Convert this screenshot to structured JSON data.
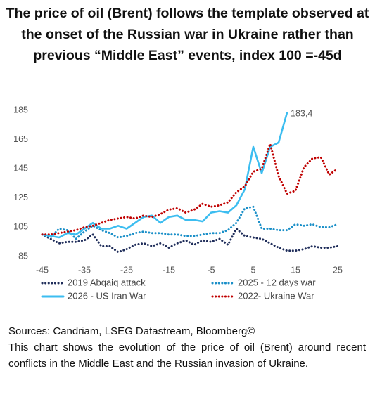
{
  "chart_data": {
    "type": "line",
    "title": "The price of oil (Brent) follows the template observed at the onset of the Russian war in Ukraine rather than previous “Middle East” events, index 100 =-45d",
    "x": [
      -45,
      -43,
      -41,
      -39,
      -37,
      -35,
      -33,
      -31,
      -29,
      -27,
      -25,
      -23,
      -21,
      -19,
      -17,
      -15,
      -13,
      -11,
      -9,
      -7,
      -5,
      -3,
      -1,
      1,
      3,
      5,
      7,
      9,
      11,
      13,
      15,
      17,
      19,
      21,
      23,
      25
    ],
    "series": [
      {
        "name": "2019 Abqaiq attack",
        "color": "#1f2d5a",
        "dashed": true,
        "values": [
          100,
          97,
          94,
          95,
          95,
          96,
          100,
          92,
          92,
          88,
          90,
          93,
          94,
          92,
          94,
          91,
          94,
          96,
          93,
          96,
          95,
          97,
          93,
          104,
          99,
          98,
          97,
          94,
          91,
          89,
          89,
          90,
          92,
          91,
          91,
          92
        ]
      },
      {
        "name": "2025 - 12 days war",
        "color": "#1a8fc8",
        "dashed": true,
        "values": [
          100,
          98,
          104,
          103,
          97,
          102,
          106,
          103,
          101,
          98,
          99,
          101,
          102,
          101,
          101,
          100,
          100,
          99,
          99,
          100,
          101,
          101,
          103,
          108,
          118,
          119,
          104,
          104,
          103,
          103,
          107,
          106,
          107,
          105,
          105,
          107
        ]
      },
      {
        "name": "2026 - US Iran War",
        "color": "#3cbdf0",
        "dashed": false,
        "values": [
          100,
          99,
          98,
          101,
          100,
          104,
          108,
          104,
          104,
          106,
          104,
          108,
          112,
          113,
          108,
          112,
          113,
          110,
          110,
          109,
          115,
          116,
          115,
          120,
          131,
          160,
          142,
          160,
          163,
          183.4,
          null,
          null,
          null,
          null,
          null,
          null
        ]
      },
      {
        "name": "2022- Ukraine War",
        "color": "#c00000",
        "dashed": true,
        "values": [
          100,
          100,
          101,
          102,
          103,
          105,
          106,
          108,
          110,
          111,
          112,
          111,
          113,
          112,
          114,
          117,
          118,
          115,
          117,
          121,
          119,
          120,
          122,
          129,
          133,
          143,
          145,
          162,
          140,
          128,
          130,
          146,
          152,
          153,
          141,
          145
        ]
      }
    ],
    "annotation": "183,4",
    "xlim": [
      -45,
      25
    ],
    "xticks": [
      -45,
      -35,
      -25,
      -15,
      -5,
      5,
      15,
      25
    ],
    "ylim": [
      85,
      185
    ],
    "yticks": [
      85,
      105,
      125,
      145,
      165,
      185
    ],
    "source": "Sources: Candriam, LSEG Datastream, Bloomberg©",
    "note": "This chart shows the evolution of the price of oil (Brent) around recent conflicts in the Middle East and the Russian invasion of Ukraine."
  }
}
